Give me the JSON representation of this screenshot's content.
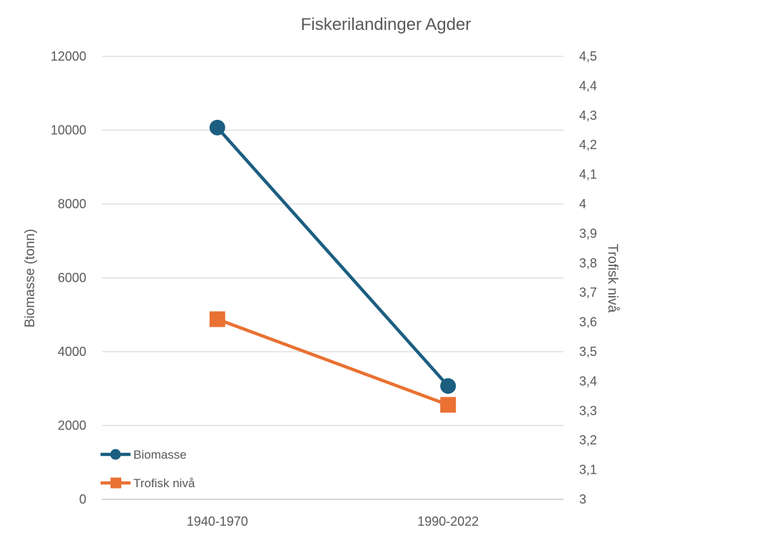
{
  "chart_data": {
    "type": "line",
    "title": "Fiskerilandinger Agder",
    "categories": [
      "1940-1970",
      "1990-2022"
    ],
    "series": [
      {
        "name": "Biomasse",
        "axis": "left",
        "values": [
          10070,
          3070
        ],
        "color": "#1b5e80",
        "marker": "circle"
      },
      {
        "name": "Trofisk nivå",
        "axis": "right",
        "values": [
          3.61,
          3.32
        ],
        "color": "#e97132",
        "marker": "square"
      }
    ],
    "ylabel": "Biomasse (tonn)",
    "y2label": "Trofisk nivå",
    "ylim": [
      0,
      12000
    ],
    "y2lim": [
      3,
      4.5
    ],
    "yticks": [
      "0",
      "2000",
      "4000",
      "6000",
      "8000",
      "10000",
      "12000"
    ],
    "y2ticks": [
      "3",
      "3,1",
      "3,2",
      "3,3",
      "3,4",
      "3,5",
      "3,6",
      "3,7",
      "3,8",
      "3,9",
      "4",
      "4,1",
      "4,2",
      "4,3",
      "4,4",
      "4,5"
    ],
    "grid": true,
    "legend": "bottom-left"
  }
}
